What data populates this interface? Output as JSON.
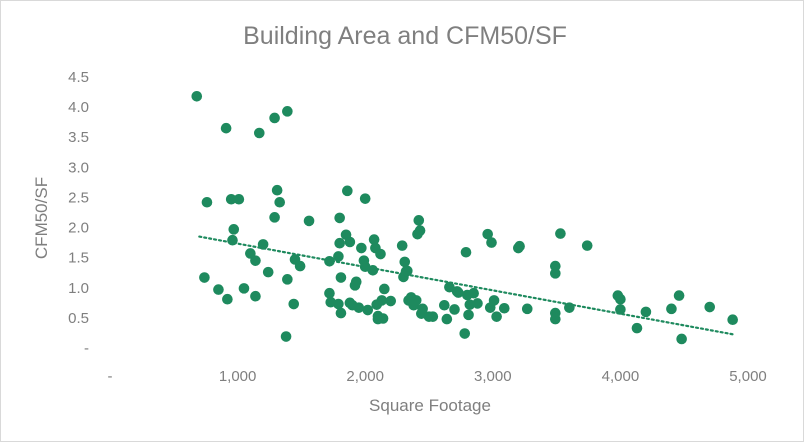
{
  "chart_data": {
    "type": "scatter",
    "title": "Building Area and CFM50/SF",
    "xlabel": "Square Footage",
    "ylabel": "CFM50/SF",
    "xlim": [
      0,
      5000
    ],
    "ylim": [
      0,
      4.5
    ],
    "x_ticks": [
      0,
      1000,
      2000,
      3000,
      4000,
      5000
    ],
    "x_tick_labels": [
      "-",
      "1,000",
      "2,000",
      "3,000",
      "4,000",
      "5,000"
    ],
    "y_ticks": [
      0,
      0.5,
      1.0,
      1.5,
      2.0,
      2.5,
      3.0,
      3.5,
      4.0,
      4.5
    ],
    "y_tick_labels": [
      "-",
      "0.5",
      "1.0",
      "1.5",
      "2.0",
      "2.5",
      "3.0",
      "3.5",
      "4.0",
      "4.5"
    ],
    "grid": false,
    "marker_color": "#1e8a5e",
    "trendline": {
      "type": "linear",
      "style": "dotted",
      "color": "#1e8a5e",
      "x_range": [
        700,
        4900
      ],
      "y_start": 1.85,
      "y_end": 0.22
    },
    "series": [
      {
        "points": [
          [
            680,
            4.18
          ],
          [
            740,
            1.17
          ],
          [
            760,
            2.42
          ],
          [
            850,
            0.97
          ],
          [
            910,
            3.65
          ],
          [
            920,
            0.81
          ],
          [
            950,
            2.47
          ],
          [
            960,
            1.79
          ],
          [
            970,
            1.97
          ],
          [
            1010,
            2.47
          ],
          [
            1050,
            0.99
          ],
          [
            1100,
            1.57
          ],
          [
            1140,
            1.45
          ],
          [
            1140,
            0.86
          ],
          [
            1170,
            3.57
          ],
          [
            1200,
            1.72
          ],
          [
            1240,
            1.26
          ],
          [
            1290,
            3.82
          ],
          [
            1290,
            2.17
          ],
          [
            1310,
            2.62
          ],
          [
            1330,
            2.42
          ],
          [
            1380,
            0.19
          ],
          [
            1390,
            3.93
          ],
          [
            1390,
            1.14
          ],
          [
            1440,
            0.73
          ],
          [
            1450,
            1.47
          ],
          [
            1490,
            1.36
          ],
          [
            1560,
            2.11
          ],
          [
            1720,
            1.44
          ],
          [
            1720,
            0.91
          ],
          [
            1730,
            0.76
          ],
          [
            1790,
            0.73
          ],
          [
            1790,
            1.52
          ],
          [
            1800,
            2.16
          ],
          [
            1800,
            1.74
          ],
          [
            1810,
            1.17
          ],
          [
            1810,
            0.58
          ],
          [
            1850,
            1.88
          ],
          [
            1860,
            2.61
          ],
          [
            1880,
            1.76
          ],
          [
            1880,
            0.75
          ],
          [
            1900,
            0.71
          ],
          [
            1920,
            1.04
          ],
          [
            1930,
            1.1
          ],
          [
            1950,
            0.67
          ],
          [
            1970,
            1.66
          ],
          [
            1990,
            1.45
          ],
          [
            2000,
            2.48
          ],
          [
            2000,
            1.35
          ],
          [
            2020,
            0.63
          ],
          [
            2060,
            1.29
          ],
          [
            2070,
            1.8
          ],
          [
            2080,
            1.66
          ],
          [
            2090,
            0.72
          ],
          [
            2100,
            0.53
          ],
          [
            2100,
            0.48
          ],
          [
            2120,
            1.56
          ],
          [
            2130,
            0.79
          ],
          [
            2140,
            0.49
          ],
          [
            2150,
            0.98
          ],
          [
            2200,
            0.78
          ],
          [
            2290,
            1.7
          ],
          [
            2300,
            1.18
          ],
          [
            2310,
            1.43
          ],
          [
            2320,
            1.27
          ],
          [
            2330,
            1.28
          ],
          [
            2340,
            0.79
          ],
          [
            2360,
            0.84
          ],
          [
            2380,
            0.71
          ],
          [
            2400,
            0.79
          ],
          [
            2410,
            1.89
          ],
          [
            2420,
            2.12
          ],
          [
            2430,
            1.95
          ],
          [
            2440,
            0.57
          ],
          [
            2450,
            0.65
          ],
          [
            2500,
            0.52
          ],
          [
            2530,
            0.52
          ],
          [
            2620,
            0.71
          ],
          [
            2640,
            0.48
          ],
          [
            2660,
            1.01
          ],
          [
            2700,
            0.64
          ],
          [
            2720,
            0.94
          ],
          [
            2730,
            0.92
          ],
          [
            2780,
            0.24
          ],
          [
            2790,
            1.59
          ],
          [
            2800,
            0.88
          ],
          [
            2810,
            0.55
          ],
          [
            2820,
            0.72
          ],
          [
            2850,
            0.91
          ],
          [
            2880,
            0.74
          ],
          [
            2960,
            1.89
          ],
          [
            2980,
            0.67
          ],
          [
            2990,
            1.75
          ],
          [
            3010,
            0.79
          ],
          [
            3030,
            0.52
          ],
          [
            3090,
            0.66
          ],
          [
            3200,
            1.66
          ],
          [
            3210,
            1.69
          ],
          [
            3270,
            0.65
          ],
          [
            3490,
            1.36
          ],
          [
            3490,
            1.24
          ],
          [
            3490,
            0.58
          ],
          [
            3490,
            0.48
          ],
          [
            3530,
            1.9
          ],
          [
            3600,
            0.67
          ],
          [
            3740,
            1.7
          ],
          [
            3980,
            0.87
          ],
          [
            4000,
            0.64
          ],
          [
            4000,
            0.81
          ],
          [
            4130,
            0.33
          ],
          [
            4200,
            0.6
          ],
          [
            4400,
            0.65
          ],
          [
            4460,
            0.87
          ],
          [
            4480,
            0.15
          ],
          [
            4700,
            0.68
          ],
          [
            4880,
            0.47
          ]
        ]
      }
    ]
  }
}
